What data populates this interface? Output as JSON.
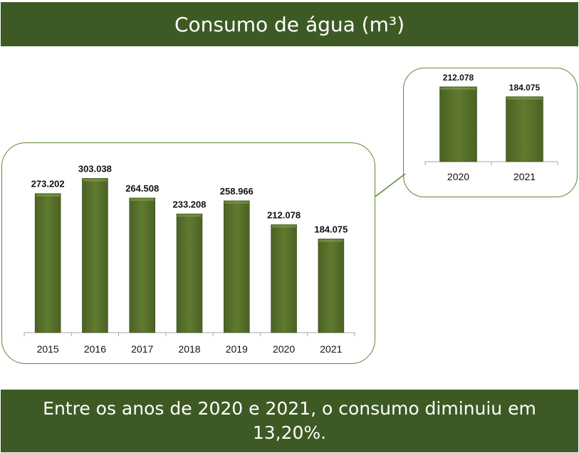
{
  "header": {
    "title": "Consumo de água (m³)"
  },
  "footer": {
    "text": "Entre os anos de 2020 e 2021, o consumo diminuiu em 13,20%."
  },
  "colors": {
    "banner": "#3d5a24",
    "bar": "#56702b",
    "bar_light": "#6f8c3a",
    "border": "#5c8a33"
  },
  "chart_data": [
    {
      "type": "bar",
      "categories": [
        "2015",
        "2016",
        "2017",
        "2018",
        "2019",
        "2020",
        "2021"
      ],
      "values": [
        273202,
        303038,
        264508,
        233208,
        258966,
        212078,
        184075
      ],
      "labels": [
        "273.202",
        "303.038",
        "264.508",
        "233.208",
        "258.966",
        "212.078",
        "184.075"
      ],
      "title": "",
      "xlabel": "",
      "ylabel": "",
      "ylim": [
        0,
        340000
      ],
      "grid": false
    },
    {
      "type": "bar",
      "categories": [
        "2020",
        "2021"
      ],
      "values": [
        212078,
        184075
      ],
      "labels": [
        "212.078",
        "184.075"
      ],
      "title": "",
      "xlabel": "",
      "ylabel": "",
      "ylim": [
        0,
        230000
      ],
      "grid": false
    }
  ]
}
